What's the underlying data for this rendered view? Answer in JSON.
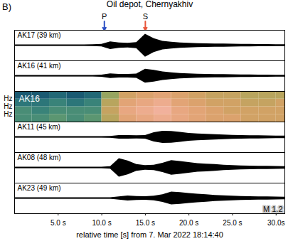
{
  "chart_data": {
    "type": "seismogram",
    "panel_label": "B)",
    "title": "Oil depot, Chernyakhiv",
    "x_label": "relative time [s] from 7. Mar 2022 18:14:40",
    "magnitude_label": "M 1.2",
    "x": [
      0,
      1,
      2,
      3,
      4,
      5,
      6,
      7,
      8,
      9,
      10,
      11,
      12,
      13,
      14,
      15,
      16,
      17,
      18,
      19,
      20,
      21,
      22,
      23,
      24,
      25,
      26,
      27,
      28,
      29,
      30,
      31
    ],
    "xlim": [
      0,
      31
    ],
    "xticks": [
      {
        "value": 5,
        "label": "5.0 s"
      },
      {
        "value": 10,
        "label": "10.0 s"
      },
      {
        "value": 15,
        "label": "15.0 s"
      },
      {
        "value": 20,
        "label": "20.0 s"
      },
      {
        "value": 25,
        "label": "25.0 s"
      },
      {
        "value": 30,
        "label": "30.0s"
      }
    ],
    "annotations": [
      {
        "text": "P",
        "x": 10.3,
        "color": "#2b4fc4"
      },
      {
        "text": "S",
        "x": 15.0,
        "color": "#e8553a"
      }
    ],
    "panels": [
      {
        "type": "trace",
        "name": "AK17 (39 km)",
        "color": "#000000",
        "ylim": [
          -1,
          1
        ],
        "values": [
          0.05,
          0.05,
          0.05,
          0.05,
          0.05,
          0.05,
          0.05,
          0.05,
          0.05,
          0.06,
          0.08,
          0.25,
          0.18,
          0.15,
          0.2,
          0.75,
          0.45,
          0.28,
          0.22,
          0.18,
          0.15,
          0.13,
          0.12,
          0.1,
          0.1,
          0.09,
          0.08,
          0.08,
          0.07,
          0.07,
          0.06,
          0.06
        ]
      },
      {
        "type": "trace",
        "name": "AK16 (41 km)",
        "color": "#000000",
        "ylim": [
          -1,
          1
        ],
        "values": [
          0.05,
          0.05,
          0.05,
          0.05,
          0.05,
          0.05,
          0.05,
          0.05,
          0.05,
          0.05,
          0.07,
          0.15,
          0.12,
          0.12,
          0.14,
          0.45,
          0.38,
          0.28,
          0.22,
          0.18,
          0.15,
          0.13,
          0.12,
          0.11,
          0.1,
          0.09,
          0.08,
          0.08,
          0.07,
          0.07,
          0.06,
          0.06
        ]
      },
      {
        "type": "spectrogram",
        "name": "AK16",
        "time_bins": [
          0,
          2,
          4,
          6,
          8,
          10,
          12,
          14,
          16,
          18,
          20,
          22,
          24,
          26,
          28,
          30,
          32
        ],
        "freq_bins": [
          0,
          5,
          10,
          15,
          20
        ],
        "ylim": [
          0,
          20
        ],
        "yticks": [
          {
            "value": 5,
            "label": "Hz"
          },
          {
            "value": 10,
            "label": "Hz"
          },
          {
            "value": 15,
            "label": "Hz"
          }
        ],
        "zlim": [
          0,
          1
        ],
        "colors": [
          "#0d3a66",
          "#2a8a86",
          "#9fae56",
          "#e39a63",
          "#f4b7aa"
        ],
        "cells": [
          [
            0.3,
            0.3,
            0.35,
            0.3,
            0.35,
            0.6,
            0.8,
            0.85,
            0.9,
            0.85,
            0.8,
            0.75,
            0.75,
            0.7,
            0.7,
            0.7
          ],
          [
            0.3,
            0.25,
            0.3,
            0.3,
            0.3,
            0.65,
            0.85,
            0.9,
            0.95,
            0.85,
            0.8,
            0.75,
            0.7,
            0.7,
            0.7,
            0.7
          ],
          [
            0.2,
            0.2,
            0.25,
            0.2,
            0.25,
            0.6,
            0.8,
            0.85,
            0.9,
            0.8,
            0.75,
            0.7,
            0.7,
            0.65,
            0.65,
            0.7
          ],
          [
            0.1,
            0.1,
            0.15,
            0.1,
            0.15,
            0.5,
            0.7,
            0.75,
            0.8,
            0.75,
            0.7,
            0.65,
            0.65,
            0.6,
            0.6,
            0.6
          ]
        ]
      },
      {
        "type": "trace",
        "name": "AK11 (45 km)",
        "color": "#000000",
        "ylim": [
          -1,
          1
        ],
        "values": [
          0.05,
          0.05,
          0.05,
          0.05,
          0.05,
          0.05,
          0.05,
          0.05,
          0.05,
          0.05,
          0.05,
          0.06,
          0.12,
          0.12,
          0.1,
          0.12,
          0.3,
          0.4,
          0.38,
          0.32,
          0.26,
          0.22,
          0.2,
          0.18,
          0.15,
          0.13,
          0.12,
          0.1,
          0.1,
          0.09,
          0.08,
          0.08
        ]
      },
      {
        "type": "trace",
        "name": "AK08 (48 km)",
        "color": "#000000",
        "ylim": [
          -1,
          1
        ],
        "values": [
          0.05,
          0.05,
          0.05,
          0.05,
          0.05,
          0.05,
          0.05,
          0.05,
          0.05,
          0.05,
          0.05,
          0.08,
          0.6,
          0.45,
          0.22,
          0.15,
          0.18,
          0.3,
          0.48,
          0.42,
          0.35,
          0.28,
          0.25,
          0.22,
          0.18,
          0.15,
          0.13,
          0.12,
          0.1,
          0.1,
          0.09,
          0.08
        ]
      },
      {
        "type": "trace",
        "name": "AK23 (49 km)",
        "color": "#000000",
        "ylim": [
          -1,
          1
        ],
        "values": [
          0.05,
          0.05,
          0.05,
          0.05,
          0.05,
          0.05,
          0.05,
          0.05,
          0.05,
          0.05,
          0.05,
          0.05,
          0.1,
          0.16,
          0.13,
          0.12,
          0.15,
          0.25,
          0.42,
          0.38,
          0.32,
          0.28,
          0.24,
          0.2,
          0.18,
          0.15,
          0.13,
          0.12,
          0.11,
          0.1,
          0.09,
          0.08
        ]
      }
    ]
  }
}
